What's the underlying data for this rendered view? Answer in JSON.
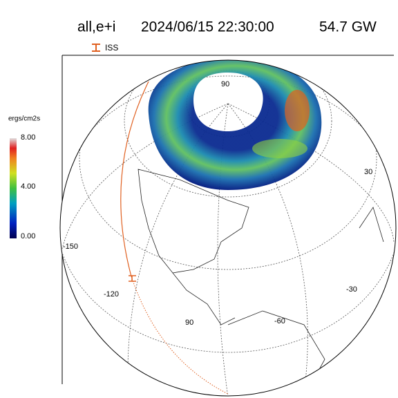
{
  "header": {
    "mode": "all,e+i",
    "datetime": "2024/06/15 22:30:00",
    "power": "54.7 GW"
  },
  "legend": {
    "label": "ISS"
  },
  "colorbar": {
    "unit": "ergs/cm2s",
    "ticks": [
      "8.00",
      "4.00",
      "0.00"
    ]
  },
  "map_labels": [
    "90",
    "30",
    "-150",
    "-120",
    "90",
    "-60",
    "-30"
  ]
}
